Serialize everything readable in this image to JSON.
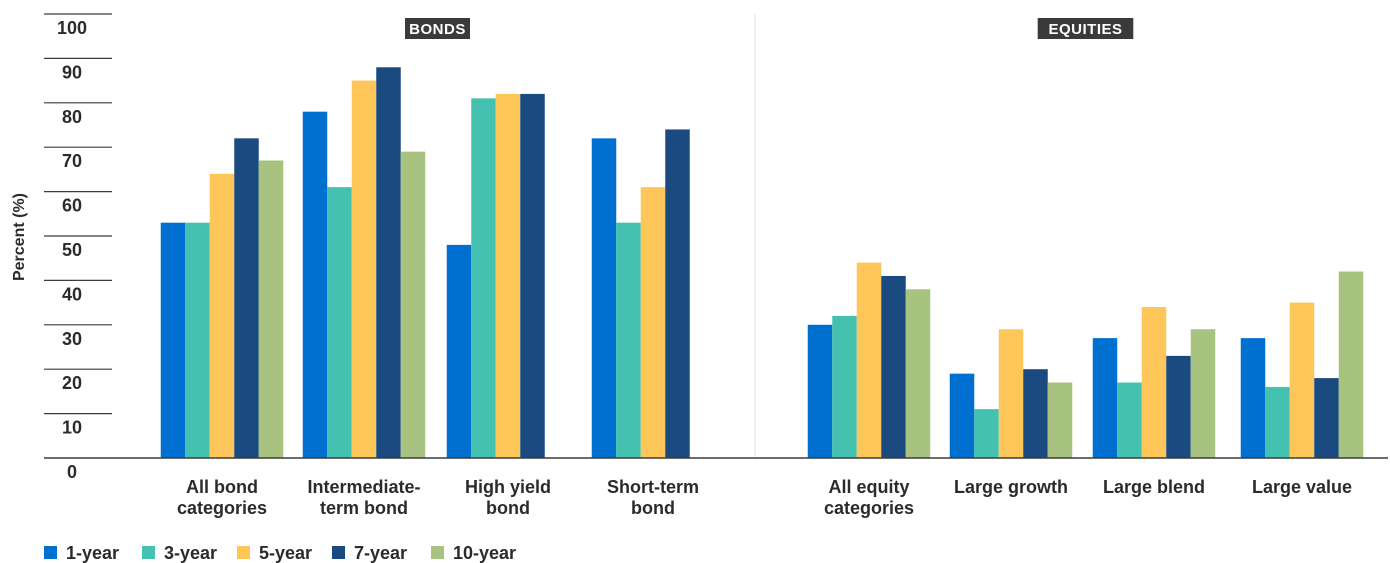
{
  "chart_data": {
    "type": "bar",
    "ylabel": "Percent (%)",
    "ylim": [
      0,
      100
    ],
    "yticks": [
      0,
      10,
      20,
      30,
      40,
      50,
      60,
      70,
      80,
      90,
      100
    ],
    "groups": [
      {
        "label": "BONDS",
        "categories": [
          [
            "All bond",
            "categories"
          ],
          [
            "Intermediate-",
            "term bond"
          ],
          [
            "High yield",
            "bond"
          ],
          [
            "Short-term",
            "bond"
          ]
        ]
      },
      {
        "label": "EQUITIES",
        "categories": [
          [
            "All equity",
            "categories"
          ],
          [
            "Large growth"
          ],
          [
            "Large blend"
          ],
          [
            "Large value"
          ]
        ]
      }
    ],
    "series": [
      {
        "name": "1-year",
        "color": "#0070d0",
        "values": [
          53,
          78,
          48,
          72,
          30,
          19,
          27,
          27
        ]
      },
      {
        "name": "3-year",
        "color": "#45c1b0",
        "values": [
          53,
          61,
          81,
          53,
          32,
          11,
          17,
          16
        ]
      },
      {
        "name": "5-year",
        "color": "#fec659",
        "values": [
          64,
          85,
          82,
          61,
          44,
          29,
          34,
          35
        ]
      },
      {
        "name": "7-year",
        "color": "#1a4a80",
        "values": [
          72,
          88,
          82,
          74,
          41,
          20,
          23,
          18
        ]
      },
      {
        "name": "10-year",
        "color": "#a8c37f",
        "values": [
          67,
          69,
          null,
          null,
          38,
          17,
          29,
          42
        ]
      }
    ],
    "legend_position": "bottom-left",
    "grid": false
  }
}
